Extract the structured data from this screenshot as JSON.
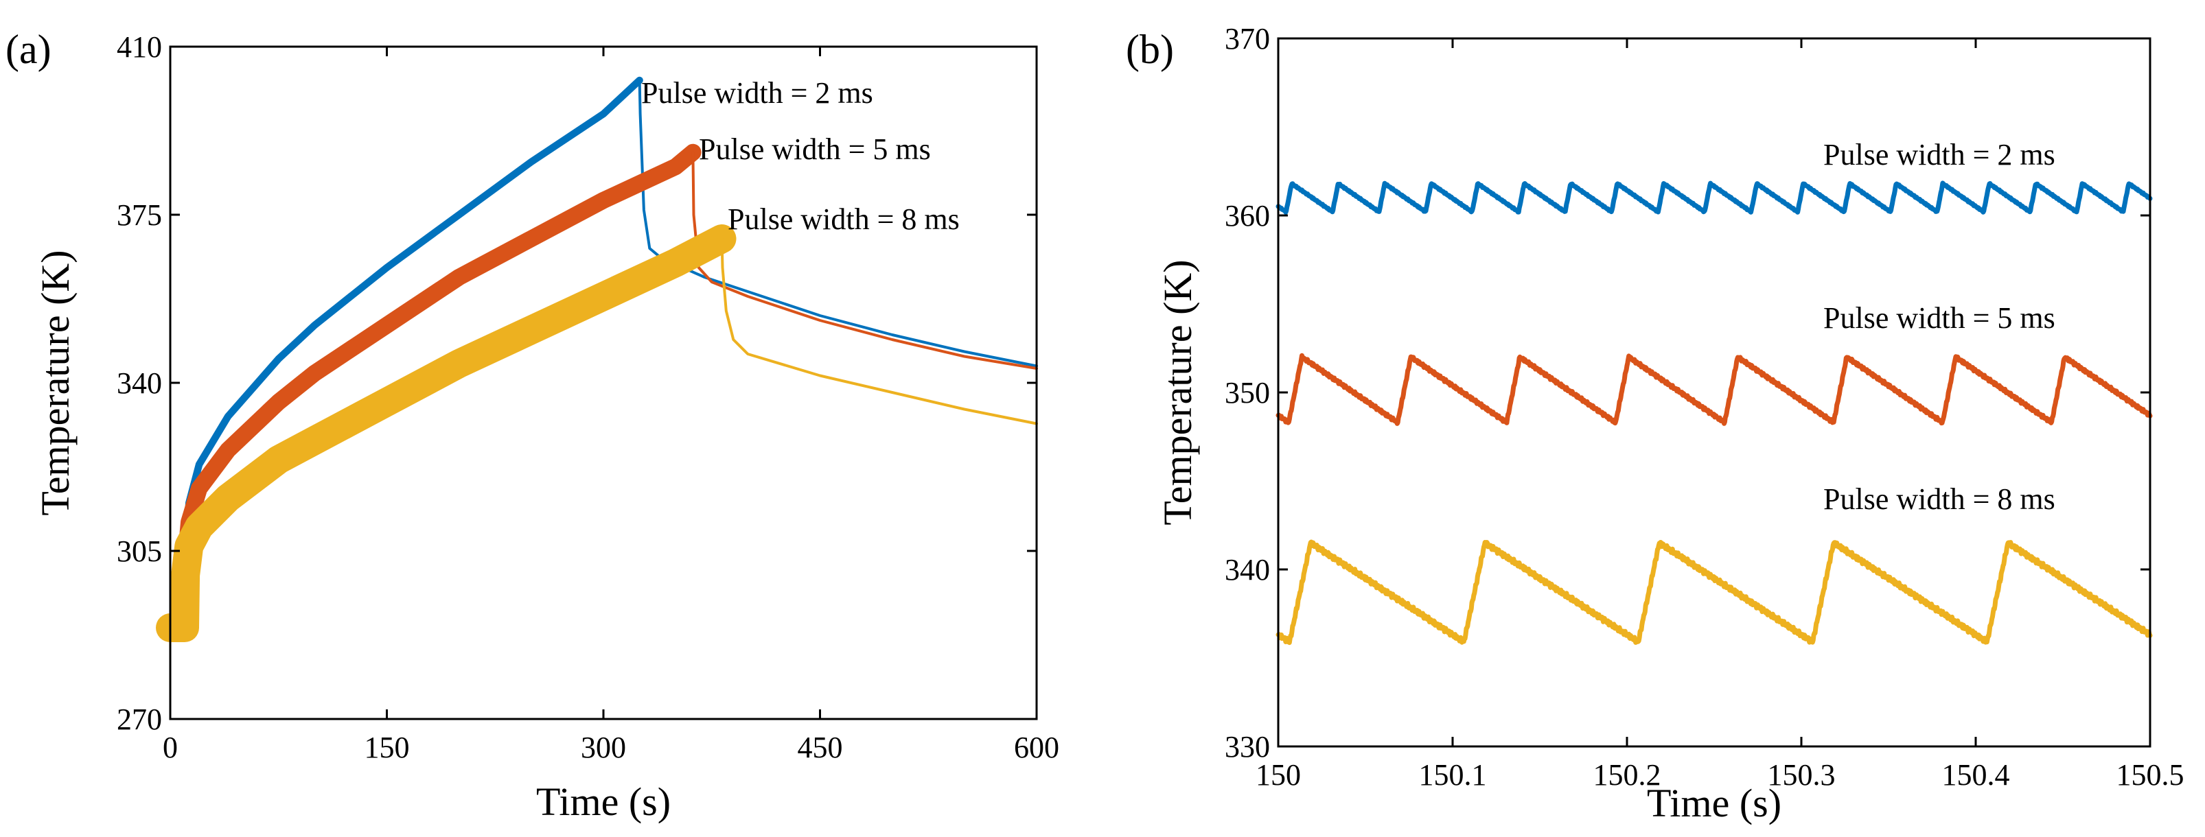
{
  "chart_data": [
    {
      "type": "line",
      "panel_label": "(a)",
      "title": "",
      "xlabel": "Time (s)",
      "ylabel": "Temperature (K)",
      "xlim": [
        0,
        600
      ],
      "ylim": [
        270,
        410
      ],
      "x_ticks": [
        "0",
        "150",
        "300",
        "450",
        "600"
      ],
      "y_ticks": [
        "270",
        "305",
        "340",
        "375",
        "410"
      ],
      "grid": false,
      "series": [
        {
          "name": "Pulse width = 2 ms",
          "color": "#0072BD",
          "band_width_K": 1.5,
          "points": [
            [
              0,
              289
            ],
            [
              10,
              289
            ],
            [
              10.5,
              303
            ],
            [
              13,
              315
            ],
            [
              20,
              323
            ],
            [
              40,
              333
            ],
            [
              75,
              345
            ],
            [
              100,
              352
            ],
            [
              150,
              364
            ],
            [
              200,
              375
            ],
            [
              250,
              386
            ],
            [
              300,
              396
            ],
            [
              325,
              403
            ],
            [
              325.5,
              396
            ],
            [
              328,
              376
            ],
            [
              332,
              368
            ],
            [
              340,
              366
            ],
            [
              370,
              362
            ],
            [
              400,
              359
            ],
            [
              450,
              354
            ],
            [
              500,
              350
            ],
            [
              550,
              346.5
            ],
            [
              600,
              343.5
            ]
          ],
          "annotation": "Pulse width = 2 ms"
        },
        {
          "name": "Pulse width = 5 ms",
          "color": "#D95319",
          "band_width_K": 3.5,
          "points": [
            [
              0,
              289
            ],
            [
              10,
              289
            ],
            [
              10.5,
              303
            ],
            [
              13,
              311
            ],
            [
              20,
              318
            ],
            [
              40,
              326
            ],
            [
              75,
              336
            ],
            [
              100,
              342
            ],
            [
              150,
              352
            ],
            [
              200,
              362
            ],
            [
              250,
              370
            ],
            [
              300,
              378
            ],
            [
              350,
              385
            ],
            [
              362,
              388
            ],
            [
              362.5,
              375
            ],
            [
              366,
              364
            ],
            [
              375,
              361
            ],
            [
              400,
              358
            ],
            [
              450,
              353
            ],
            [
              500,
              349
            ],
            [
              550,
              345.5
            ],
            [
              600,
              343
            ]
          ],
          "annotation": "Pulse width = 5 ms"
        },
        {
          "name": "Pulse width = 8 ms",
          "color": "#EDB120",
          "band_width_K": 6,
          "points": [
            [
              0,
              289
            ],
            [
              10,
              289
            ],
            [
              10.5,
              300
            ],
            [
              13,
              306
            ],
            [
              20,
              310
            ],
            [
              40,
              316
            ],
            [
              75,
              324
            ],
            [
              100,
              328
            ],
            [
              150,
              336
            ],
            [
              200,
              344
            ],
            [
              250,
              351
            ],
            [
              300,
              358
            ],
            [
              350,
              365
            ],
            [
              382,
              370
            ],
            [
              382.5,
              364
            ],
            [
              385,
              355
            ],
            [
              390,
              349
            ],
            [
              400,
              346
            ],
            [
              450,
              341.5
            ],
            [
              500,
              338
            ],
            [
              550,
              334.5
            ],
            [
              600,
              331.5
            ]
          ],
          "annotation": "Pulse width = 8 ms"
        }
      ]
    },
    {
      "type": "line",
      "panel_label": "(b)",
      "title": "",
      "xlabel": "Time (s)",
      "ylabel": "Temperature (K)",
      "xlim": [
        150,
        150.5
      ],
      "ylim": [
        330,
        370
      ],
      "x_ticks": [
        "150",
        "150.1",
        "150.2",
        "150.3",
        "150.4",
        "150.5"
      ],
      "y_ticks": [
        "330",
        "340",
        "350",
        "360",
        "370"
      ],
      "grid": false,
      "series": [
        {
          "name": "Pulse width = 2 ms",
          "color": "#0072BD",
          "sawtooth": {
            "period_s": 0.02667,
            "low_K": 360.2,
            "high_K": 361.8,
            "phase_s": 0.0045
          },
          "annotation": "Pulse width = 2 ms"
        },
        {
          "name": "Pulse width = 5 ms",
          "color": "#D95319",
          "sawtooth": {
            "period_s": 0.0625,
            "low_K": 348.3,
            "high_K": 352.0,
            "phase_s": 0.006
          },
          "annotation": "Pulse width = 5 ms"
        },
        {
          "name": "Pulse width = 8 ms",
          "color": "#EDB120",
          "sawtooth": {
            "period_s": 0.1,
            "low_K": 335.9,
            "high_K": 341.5,
            "phase_s": 0.0065
          },
          "annotation": "Pulse width = 8 ms"
        }
      ]
    }
  ]
}
